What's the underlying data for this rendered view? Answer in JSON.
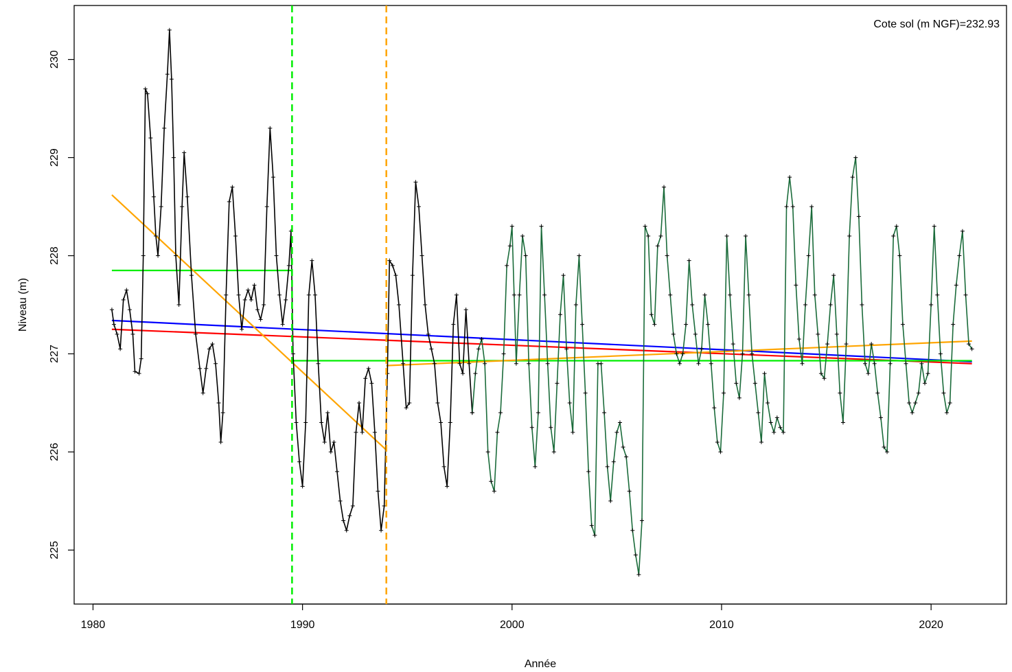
{
  "chart_data": {
    "type": "line",
    "xlabel": "Année",
    "ylabel": "Niveau (m)",
    "annotation": "Cote sol (m NGF)=232.93",
    "xlim": [
      1979.1,
      2023.6
    ],
    "ylim": [
      224.45,
      230.55
    ],
    "x_ticks": [
      1980,
      1990,
      2000,
      2010,
      2020
    ],
    "y_ticks": [
      225,
      226,
      227,
      228,
      229,
      230
    ],
    "grid": false,
    "legend": "none",
    "point_marker": "+",
    "series": [
      {
        "color": "#000000",
        "points": [
          [
            1980.9,
            227.45
          ],
          [
            1981.0,
            227.3
          ],
          [
            1981.15,
            227.2
          ],
          [
            1981.3,
            227.05
          ],
          [
            1981.45,
            227.55
          ],
          [
            1981.6,
            227.65
          ],
          [
            1981.75,
            227.45
          ],
          [
            1981.9,
            227.2
          ],
          [
            1982.0,
            226.82
          ],
          [
            1982.2,
            226.8
          ],
          [
            1982.3,
            226.95
          ],
          [
            1982.4,
            228.0
          ],
          [
            1982.5,
            229.7
          ],
          [
            1982.6,
            229.65
          ],
          [
            1982.75,
            229.2
          ],
          [
            1982.9,
            228.6
          ],
          [
            1983.0,
            228.2
          ],
          [
            1983.1,
            228.0
          ],
          [
            1983.25,
            228.5
          ],
          [
            1983.4,
            229.3
          ],
          [
            1983.55,
            229.85
          ],
          [
            1983.65,
            230.3
          ],
          [
            1983.75,
            229.8
          ],
          [
            1983.85,
            229.0
          ],
          [
            1983.95,
            228.0
          ],
          [
            1984.1,
            227.5
          ],
          [
            1984.25,
            228.5
          ],
          [
            1984.35,
            229.05
          ],
          [
            1984.5,
            228.6
          ],
          [
            1984.7,
            227.8
          ],
          [
            1984.9,
            227.2
          ],
          [
            1985.1,
            226.85
          ],
          [
            1985.25,
            226.6
          ],
          [
            1985.4,
            226.85
          ],
          [
            1985.55,
            227.05
          ],
          [
            1985.7,
            227.1
          ],
          [
            1985.85,
            226.9
          ],
          [
            1986.0,
            226.5
          ],
          [
            1986.1,
            226.1
          ],
          [
            1986.2,
            226.4
          ],
          [
            1986.35,
            227.6
          ],
          [
            1986.5,
            228.55
          ],
          [
            1986.65,
            228.7
          ],
          [
            1986.8,
            228.2
          ],
          [
            1986.95,
            227.6
          ],
          [
            1987.1,
            227.25
          ],
          [
            1987.25,
            227.55
          ],
          [
            1987.4,
            227.65
          ],
          [
            1987.55,
            227.55
          ],
          [
            1987.7,
            227.7
          ],
          [
            1987.85,
            227.45
          ],
          [
            1988.0,
            227.35
          ],
          [
            1988.15,
            227.5
          ],
          [
            1988.3,
            228.5
          ],
          [
            1988.45,
            229.3
          ],
          [
            1988.6,
            228.8
          ],
          [
            1988.75,
            228.0
          ],
          [
            1988.9,
            227.6
          ],
          [
            1989.05,
            227.3
          ],
          [
            1989.2,
            227.55
          ],
          [
            1989.35,
            227.9
          ],
          [
            1989.45,
            228.25
          ],
          [
            1989.55,
            227.0
          ],
          [
            1989.7,
            226.3
          ],
          [
            1989.85,
            225.9
          ],
          [
            1990.0,
            225.65
          ],
          [
            1990.15,
            226.3
          ],
          [
            1990.3,
            227.6
          ],
          [
            1990.45,
            227.95
          ],
          [
            1990.6,
            227.6
          ],
          [
            1990.75,
            226.9
          ],
          [
            1990.9,
            226.3
          ],
          [
            1991.05,
            226.1
          ],
          [
            1991.2,
            226.4
          ],
          [
            1991.35,
            226.0
          ],
          [
            1991.5,
            226.1
          ],
          [
            1991.65,
            225.8
          ],
          [
            1991.8,
            225.5
          ],
          [
            1991.95,
            225.3
          ],
          [
            1992.1,
            225.2
          ],
          [
            1992.25,
            225.35
          ],
          [
            1992.4,
            225.45
          ],
          [
            1992.55,
            226.2
          ],
          [
            1992.7,
            226.5
          ],
          [
            1992.85,
            226.2
          ],
          [
            1993.0,
            226.75
          ],
          [
            1993.15,
            226.85
          ],
          [
            1993.3,
            226.7
          ],
          [
            1993.45,
            226.2
          ],
          [
            1993.6,
            225.6
          ],
          [
            1993.75,
            225.2
          ],
          [
            1993.9,
            225.45
          ],
          [
            1994.05,
            226.8
          ],
          [
            1994.15,
            227.95
          ],
          [
            1994.3,
            227.9
          ],
          [
            1994.45,
            227.8
          ],
          [
            1994.6,
            227.5
          ],
          [
            1994.8,
            226.9
          ],
          [
            1994.95,
            226.45
          ],
          [
            1995.1,
            226.5
          ],
          [
            1995.25,
            227.8
          ],
          [
            1995.4,
            228.75
          ],
          [
            1995.55,
            228.5
          ],
          [
            1995.7,
            228.0
          ],
          [
            1995.85,
            227.5
          ],
          [
            1996.0,
            227.2
          ],
          [
            1996.15,
            227.05
          ],
          [
            1996.3,
            226.9
          ],
          [
            1996.45,
            226.5
          ],
          [
            1996.6,
            226.3
          ],
          [
            1996.75,
            225.85
          ],
          [
            1996.9,
            225.65
          ],
          [
            1997.05,
            226.3
          ],
          [
            1997.2,
            227.3
          ],
          [
            1997.35,
            227.6
          ],
          [
            1997.5,
            226.9
          ],
          [
            1997.65,
            226.8
          ],
          [
            1997.8,
            227.45
          ],
          [
            1997.95,
            226.9
          ],
          [
            1998.1,
            226.4
          ]
        ]
      },
      {
        "color": "#1a6b3a",
        "points": [
          [
            1998.1,
            226.4
          ],
          [
            1998.25,
            226.8
          ],
          [
            1998.4,
            227.05
          ],
          [
            1998.55,
            227.15
          ],
          [
            1998.7,
            226.9
          ],
          [
            1998.85,
            226.0
          ],
          [
            1999.0,
            225.7
          ],
          [
            1999.15,
            225.6
          ],
          [
            1999.3,
            226.2
          ],
          [
            1999.45,
            226.4
          ],
          [
            1999.6,
            227.0
          ],
          [
            1999.75,
            227.9
          ],
          [
            1999.9,
            228.1
          ],
          [
            2000.0,
            228.3
          ],
          [
            2000.1,
            227.6
          ],
          [
            2000.2,
            226.9
          ],
          [
            2000.35,
            227.6
          ],
          [
            2000.5,
            228.2
          ],
          [
            2000.65,
            228.0
          ],
          [
            2000.8,
            226.9
          ],
          [
            2000.95,
            226.25
          ],
          [
            2001.1,
            225.85
          ],
          [
            2001.25,
            226.4
          ],
          [
            2001.4,
            228.3
          ],
          [
            2001.55,
            227.6
          ],
          [
            2001.7,
            226.9
          ],
          [
            2001.85,
            226.25
          ],
          [
            2002.0,
            226.0
          ],
          [
            2002.15,
            226.7
          ],
          [
            2002.3,
            227.4
          ],
          [
            2002.45,
            227.8
          ],
          [
            2002.6,
            227.05
          ],
          [
            2002.75,
            226.5
          ],
          [
            2002.9,
            226.2
          ],
          [
            2003.05,
            227.5
          ],
          [
            2003.2,
            228.0
          ],
          [
            2003.35,
            227.3
          ],
          [
            2003.5,
            226.6
          ],
          [
            2003.65,
            225.8
          ],
          [
            2003.8,
            225.25
          ],
          [
            2003.95,
            225.15
          ],
          [
            2004.1,
            226.9
          ],
          [
            2004.25,
            226.9
          ],
          [
            2004.4,
            226.4
          ],
          [
            2004.55,
            225.85
          ],
          [
            2004.7,
            225.5
          ],
          [
            2004.85,
            225.9
          ],
          [
            2005.0,
            226.2
          ],
          [
            2005.15,
            226.3
          ],
          [
            2005.3,
            226.05
          ],
          [
            2005.45,
            225.95
          ],
          [
            2005.6,
            225.6
          ],
          [
            2005.75,
            225.2
          ],
          [
            2005.9,
            224.95
          ],
          [
            2006.05,
            224.75
          ],
          [
            2006.2,
            225.3
          ],
          [
            2006.35,
            228.3
          ],
          [
            2006.5,
            228.2
          ],
          [
            2006.65,
            227.4
          ],
          [
            2006.8,
            227.3
          ],
          [
            2006.95,
            228.1
          ],
          [
            2007.1,
            228.2
          ],
          [
            2007.25,
            228.7
          ],
          [
            2007.4,
            228.0
          ],
          [
            2007.55,
            227.6
          ],
          [
            2007.7,
            227.2
          ],
          [
            2007.85,
            227.0
          ],
          [
            2008.0,
            226.9
          ],
          [
            2008.15,
            227.0
          ],
          [
            2008.3,
            227.3
          ],
          [
            2008.45,
            227.95
          ],
          [
            2008.6,
            227.5
          ],
          [
            2008.75,
            227.2
          ],
          [
            2008.9,
            226.9
          ],
          [
            2009.05,
            227.05
          ],
          [
            2009.2,
            227.6
          ],
          [
            2009.35,
            227.3
          ],
          [
            2009.5,
            226.9
          ],
          [
            2009.65,
            226.45
          ],
          [
            2009.8,
            226.1
          ],
          [
            2009.95,
            226.0
          ],
          [
            2010.1,
            226.6
          ],
          [
            2010.25,
            228.2
          ],
          [
            2010.4,
            227.6
          ],
          [
            2010.55,
            227.1
          ],
          [
            2010.7,
            226.7
          ],
          [
            2010.85,
            226.55
          ],
          [
            2011.0,
            227.0
          ],
          [
            2011.15,
            228.2
          ],
          [
            2011.3,
            227.6
          ],
          [
            2011.45,
            227.0
          ],
          [
            2011.6,
            226.7
          ],
          [
            2011.75,
            226.4
          ],
          [
            2011.9,
            226.1
          ],
          [
            2012.05,
            226.8
          ],
          [
            2012.2,
            226.5
          ],
          [
            2012.35,
            226.3
          ],
          [
            2012.5,
            226.2
          ],
          [
            2012.65,
            226.35
          ],
          [
            2012.8,
            226.25
          ],
          [
            2012.95,
            226.2
          ],
          [
            2013.1,
            228.5
          ],
          [
            2013.25,
            228.8
          ],
          [
            2013.4,
            228.5
          ],
          [
            2013.55,
            227.7
          ],
          [
            2013.7,
            227.15
          ],
          [
            2013.85,
            226.9
          ],
          [
            2014.0,
            227.5
          ],
          [
            2014.15,
            228.0
          ],
          [
            2014.3,
            228.5
          ],
          [
            2014.45,
            227.6
          ],
          [
            2014.6,
            227.2
          ],
          [
            2014.75,
            226.8
          ],
          [
            2014.9,
            226.75
          ],
          [
            2015.05,
            227.1
          ],
          [
            2015.2,
            227.5
          ],
          [
            2015.35,
            227.8
          ],
          [
            2015.5,
            227.2
          ],
          [
            2015.65,
            226.6
          ],
          [
            2015.8,
            226.3
          ],
          [
            2015.95,
            227.1
          ],
          [
            2016.1,
            228.2
          ],
          [
            2016.25,
            228.8
          ],
          [
            2016.4,
            229.0
          ],
          [
            2016.55,
            228.4
          ],
          [
            2016.7,
            227.5
          ],
          [
            2016.85,
            226.9
          ],
          [
            2017.0,
            226.8
          ],
          [
            2017.15,
            227.1
          ],
          [
            2017.3,
            226.9
          ],
          [
            2017.45,
            226.6
          ],
          [
            2017.6,
            226.35
          ],
          [
            2017.75,
            226.05
          ],
          [
            2017.9,
            226.0
          ],
          [
            2018.05,
            226.9
          ],
          [
            2018.2,
            228.2
          ],
          [
            2018.35,
            228.3
          ],
          [
            2018.5,
            228.0
          ],
          [
            2018.65,
            227.3
          ],
          [
            2018.8,
            226.9
          ],
          [
            2018.95,
            226.5
          ],
          [
            2019.1,
            226.4
          ],
          [
            2019.25,
            226.5
          ],
          [
            2019.4,
            226.6
          ],
          [
            2019.55,
            226.9
          ],
          [
            2019.7,
            226.7
          ],
          [
            2019.85,
            226.8
          ],
          [
            2020.0,
            227.5
          ],
          [
            2020.15,
            228.3
          ],
          [
            2020.3,
            227.6
          ],
          [
            2020.45,
            227.0
          ],
          [
            2020.6,
            226.6
          ],
          [
            2020.75,
            226.4
          ],
          [
            2020.9,
            226.5
          ],
          [
            2021.05,
            227.3
          ],
          [
            2021.2,
            227.7
          ],
          [
            2021.35,
            228.0
          ],
          [
            2021.5,
            228.25
          ],
          [
            2021.65,
            227.6
          ],
          [
            2021.8,
            227.1
          ],
          [
            2021.95,
            227.05
          ]
        ]
      }
    ],
    "fit_lines": [
      {
        "color": "#0000ff",
        "points": [
          [
            1980.9,
            227.34
          ],
          [
            2021.95,
            226.92
          ]
        ]
      },
      {
        "color": "#ff0000",
        "points": [
          [
            1980.9,
            227.25
          ],
          [
            2021.95,
            226.9
          ]
        ]
      },
      {
        "color": "#00ee00",
        "points": [
          [
            1980.9,
            227.85
          ],
          [
            1989.5,
            227.85
          ]
        ]
      },
      {
        "color": "#00ee00",
        "points": [
          [
            1989.5,
            226.93
          ],
          [
            2021.95,
            226.93
          ]
        ]
      },
      {
        "color": "#ffa500",
        "points": [
          [
            1980.9,
            228.62
          ],
          [
            1994.0,
            226.02
          ]
        ]
      },
      {
        "color": "#ffa500",
        "points": [
          [
            1994.0,
            226.88
          ],
          [
            2021.95,
            227.13
          ]
        ]
      }
    ],
    "breakpoints": [
      {
        "x": 1989.5,
        "color": "#00ee00"
      },
      {
        "x": 1994.0,
        "color": "#ffa500"
      }
    ]
  }
}
